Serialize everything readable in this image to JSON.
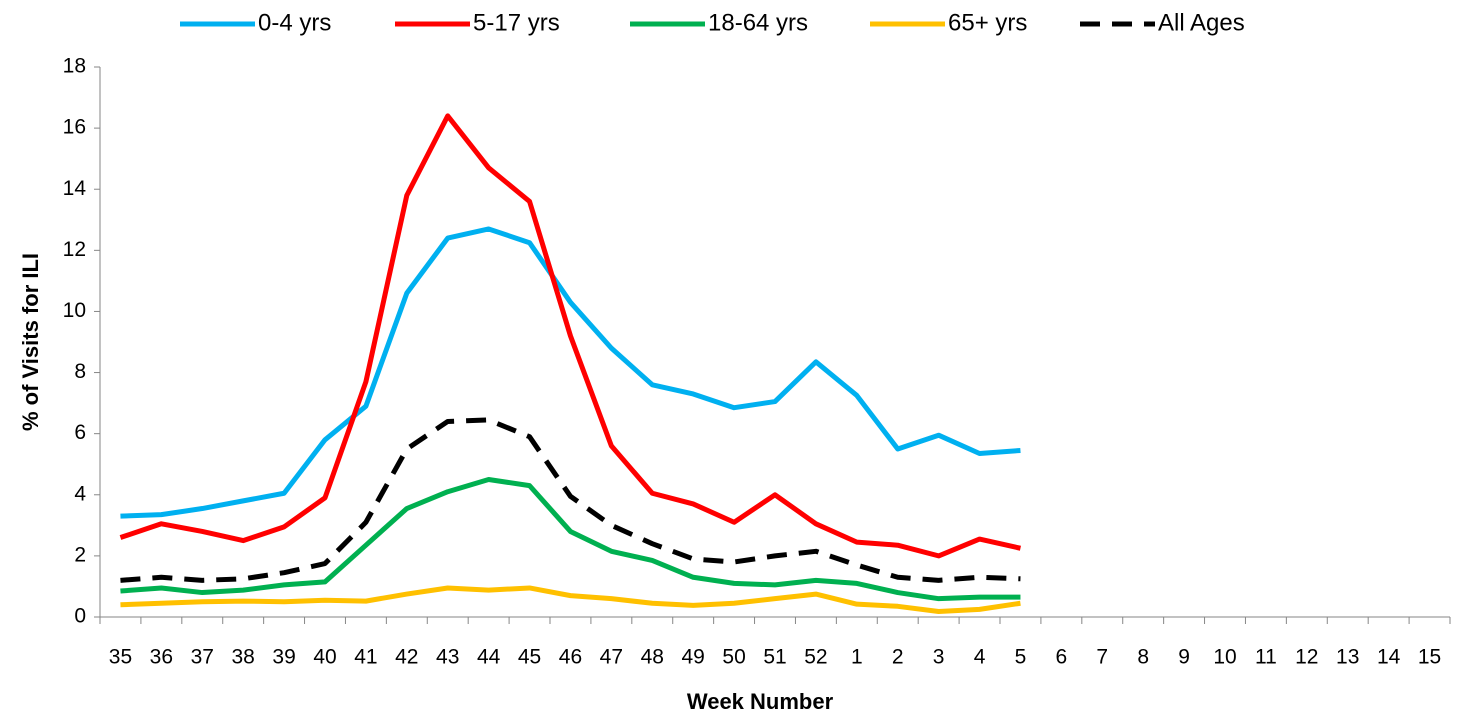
{
  "chart_data": {
    "type": "line",
    "xlabel": "Week Number",
    "ylabel": "% of Visits for ILI",
    "categories": [
      "35",
      "36",
      "37",
      "38",
      "39",
      "40",
      "41",
      "42",
      "43",
      "44",
      "45",
      "46",
      "47",
      "48",
      "49",
      "50",
      "51",
      "52",
      "1",
      "2",
      "3",
      "4",
      "5",
      "6",
      "7",
      "8",
      "9",
      "10",
      "11",
      "12",
      "13",
      "14",
      "15"
    ],
    "ylim": [
      0,
      18
    ],
    "yticks": [
      0,
      2,
      4,
      6,
      8,
      10,
      12,
      14,
      16,
      18
    ],
    "legend": "top",
    "series": [
      {
        "name": "0-4 yrs",
        "color": "#00b0f0",
        "values": [
          3.3,
          3.35,
          3.55,
          3.8,
          4.05,
          5.8,
          6.9,
          10.6,
          12.4,
          12.7,
          12.25,
          10.3,
          8.8,
          7.6,
          7.3,
          6.85,
          7.05,
          8.35,
          7.25,
          5.5,
          5.95,
          5.35,
          5.45,
          null,
          null,
          null,
          null,
          null,
          null,
          null,
          null,
          null,
          null
        ]
      },
      {
        "name": "5-17 yrs",
        "color": "#ff0000",
        "values": [
          2.6,
          3.05,
          2.8,
          2.5,
          2.95,
          3.9,
          7.7,
          13.8,
          16.4,
          14.7,
          13.6,
          9.2,
          5.6,
          4.05,
          3.7,
          3.1,
          4.0,
          3.05,
          2.45,
          2.35,
          2.0,
          2.55,
          2.25,
          null,
          null,
          null,
          null,
          null,
          null,
          null,
          null,
          null,
          null
        ]
      },
      {
        "name": "18-64 yrs",
        "color": "#00b050",
        "values": [
          0.85,
          0.95,
          0.8,
          0.88,
          1.05,
          1.15,
          2.35,
          3.55,
          4.1,
          4.5,
          4.3,
          2.8,
          2.15,
          1.85,
          1.3,
          1.1,
          1.05,
          1.2,
          1.1,
          0.8,
          0.6,
          0.65,
          0.65,
          null,
          null,
          null,
          null,
          null,
          null,
          null,
          null,
          null,
          null
        ]
      },
      {
        "name": "65+ yrs",
        "color": "#ffc000",
        "values": [
          0.4,
          0.45,
          0.5,
          0.52,
          0.5,
          0.55,
          0.52,
          0.75,
          0.95,
          0.88,
          0.95,
          0.7,
          0.6,
          0.45,
          0.38,
          0.45,
          0.6,
          0.75,
          0.42,
          0.35,
          0.18,
          0.25,
          0.45,
          null,
          null,
          null,
          null,
          null,
          null,
          null,
          null,
          null,
          null
        ]
      },
      {
        "name": "All Ages",
        "color": "#000000",
        "dashed": true,
        "values": [
          1.2,
          1.3,
          1.2,
          1.25,
          1.45,
          1.75,
          3.1,
          5.5,
          6.4,
          6.45,
          5.9,
          3.95,
          3.0,
          2.4,
          1.9,
          1.8,
          2.0,
          2.15,
          1.7,
          1.3,
          1.2,
          1.3,
          1.25,
          null,
          null,
          null,
          null,
          null,
          null,
          null,
          null,
          null,
          null
        ]
      }
    ]
  }
}
